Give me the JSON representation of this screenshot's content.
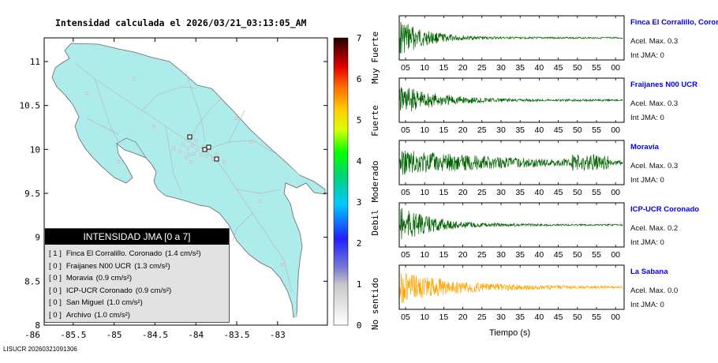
{
  "map": {
    "title": "Intensidad calculada el 2026/03/21_03:13:05_AM",
    "y_ticks": [
      "11",
      "10.5",
      "10",
      "9.5",
      "9",
      "8.5",
      "8"
    ],
    "x_ticks": [
      "-86",
      "-85.5",
      "-85",
      "-84.5",
      "-84",
      "-83.5",
      "-83"
    ]
  },
  "colorbar": {
    "ticks": [
      "7",
      "6",
      "5",
      "4",
      "3",
      "2",
      "1",
      "0"
    ],
    "levels": [
      "Muy Fuerte",
      "Fuerte",
      "Moderado",
      "Debil",
      "No sentido"
    ]
  },
  "legend": {
    "header": "INTENSIDAD JMA [0 a 7]",
    "rows": [
      {
        "level": "[ 1 ]",
        "text": "Finca El Corralillo. Coronado",
        "value": "(1.4 cm/s²)"
      },
      {
        "level": "[ 0 ]",
        "text": "Fraijanes N00 UCR",
        "value": "(1.3 cm/s²)"
      },
      {
        "level": "[ 0 ]",
        "text": "Moravia",
        "value": "(0.9 cm/s²)"
      },
      {
        "level": "[ 0 ]",
        "text": "ICP-UCR Coronado",
        "value": "(0.9 cm/s²)"
      },
      {
        "level": "[ 0 ]",
        "text": "San Miguel",
        "value": "(1.0 cm/s²)"
      },
      {
        "level": "[ 0 ]",
        "text": "Archivo",
        "value": "(1.0 cm/s²)"
      }
    ]
  },
  "stations": [
    {
      "name": "Finca El Corralillo, Coronado",
      "accel": "Acel. Max. 0.3",
      "int": "Int JMA: 0",
      "color": "#006400",
      "amp": 1.0,
      "decay": 7,
      "ticks": [
        "05",
        "10",
        "15",
        "20",
        "25",
        "30",
        "35",
        "40",
        "45",
        "50",
        "55",
        "00"
      ]
    },
    {
      "name": "Fraijanes N00 UCR",
      "accel": "Acel. Max. 0.3",
      "int": "Int JMA: 0",
      "color": "#006400",
      "amp": 0.8,
      "decay": 11,
      "ticks": [
        "05",
        "10",
        "15",
        "20",
        "25",
        "30",
        "35",
        "40",
        "45",
        "50",
        "55",
        "00"
      ]
    },
    {
      "name": "Moravia",
      "accel": "Acel. Max. 0.3",
      "int": "Int JMA: 0",
      "color": "#006400",
      "amp": 0.7,
      "decay": 30,
      "ticks": [
        "05",
        "10",
        "15",
        "20",
        "25",
        "30",
        "35",
        "40",
        "45",
        "50",
        "55",
        "00"
      ]
    },
    {
      "name": "ICP-UCR Coronado",
      "accel": "Acel. Max. 0.2",
      "int": "Int JMA: 0",
      "color": "#006400",
      "amp": 0.95,
      "decay": 9,
      "ticks": [
        "05",
        "10",
        "15",
        "20",
        "25",
        "30",
        "35",
        "40",
        "45",
        "50",
        "55",
        "00"
      ]
    },
    {
      "name": "La Sabana",
      "accel": "Acel. Max. 0.0",
      "int": "Int JMA: 0",
      "color": "#ffa500",
      "amp": 0.85,
      "decay": 16,
      "ticks": [
        "05",
        "10",
        "15",
        "20",
        "25",
        "30",
        "35",
        "40",
        "45",
        "50",
        "55",
        "00"
      ]
    }
  ],
  "x_axis_label": "Tiempo (s)",
  "footer_id": "LISUCR 20260321091306"
}
